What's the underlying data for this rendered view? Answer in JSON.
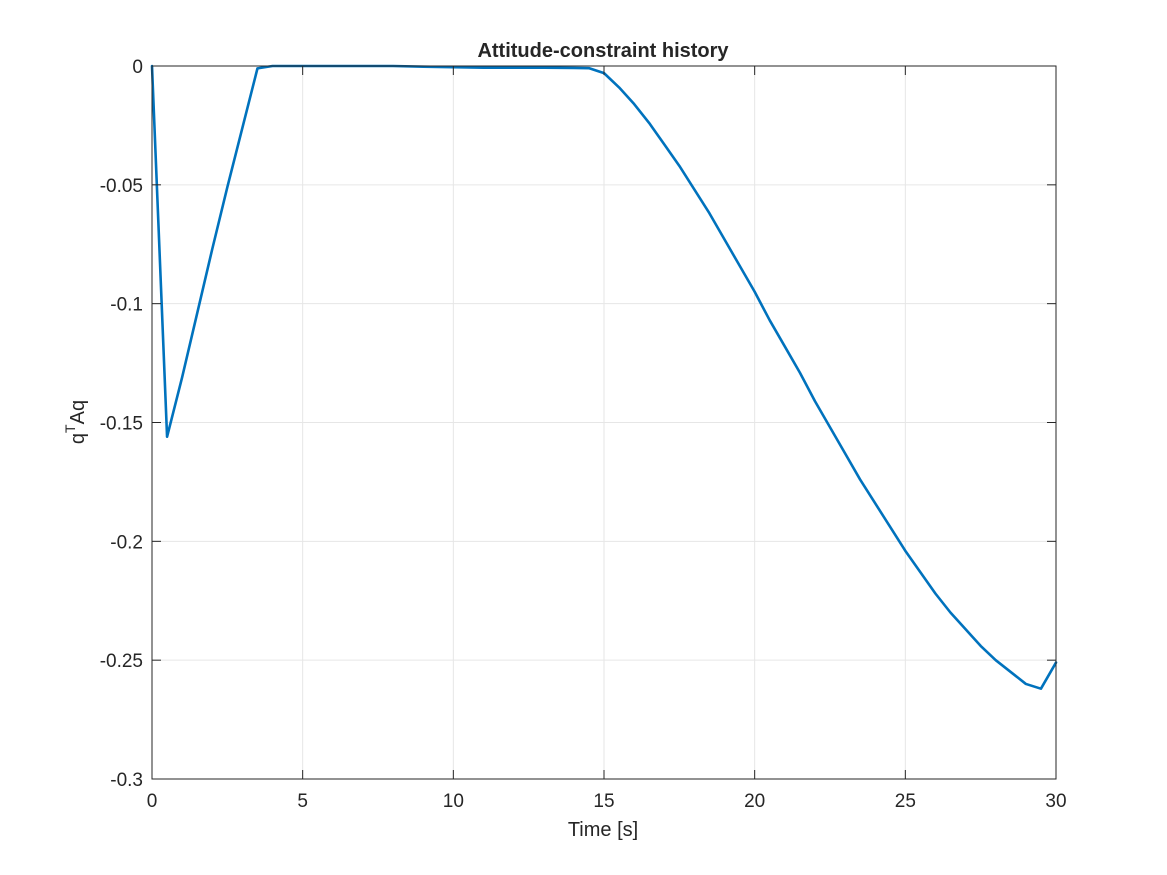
{
  "chart_data": {
    "type": "line",
    "title": "Attitude-constraint history",
    "xlabel": "Time [s]",
    "ylabel": {
      "base": "q",
      "superscript": "T",
      "rest": "Aq"
    },
    "xlim": [
      0,
      30
    ],
    "ylim": [
      -0.3,
      0
    ],
    "xticks": [
      0,
      5,
      10,
      15,
      20,
      25,
      30
    ],
    "xtick_labels": [
      "0",
      "5",
      "10",
      "15",
      "20",
      "25",
      "30"
    ],
    "yticks": [
      0,
      -0.05,
      -0.1,
      -0.15,
      -0.2,
      -0.25,
      -0.3
    ],
    "ytick_labels": [
      "0",
      "-0.05",
      "-0.1",
      "-0.15",
      "-0.2",
      "-0.25",
      "-0.3"
    ],
    "grid": true,
    "colors": {
      "line": "#0072BD",
      "grid": "#e6e6e6",
      "axis": "#262626"
    },
    "series": [
      {
        "x": [
          0,
          0.5,
          1.0,
          1.5,
          2.0,
          2.5,
          3.0,
          3.5,
          4.0,
          5,
          6,
          7,
          8,
          9,
          10,
          11,
          12,
          13,
          14,
          14.5,
          15,
          15.5,
          16,
          16.5,
          17,
          17.5,
          18,
          18.5,
          19,
          19.5,
          20,
          20.5,
          21,
          21.5,
          22,
          22.5,
          23,
          23.5,
          24,
          24.5,
          25,
          25.5,
          26,
          26.5,
          27,
          27.5,
          28,
          28.5,
          29,
          29.5,
          30
        ],
        "y": [
          0,
          -0.156,
          -0.131,
          -0.104,
          -0.077,
          -0.051,
          -0.026,
          -0.001,
          0,
          0,
          0,
          0,
          0,
          -0.0003,
          -0.0005,
          -0.0007,
          -0.0007,
          -0.0007,
          -0.0008,
          -0.0009,
          -0.003,
          -0.009,
          -0.016,
          -0.024,
          -0.033,
          -0.042,
          -0.052,
          -0.062,
          -0.073,
          -0.084,
          -0.095,
          -0.107,
          -0.118,
          -0.129,
          -0.141,
          -0.152,
          -0.163,
          -0.174,
          -0.184,
          -0.194,
          -0.204,
          -0.213,
          -0.222,
          -0.23,
          -0.237,
          -0.244,
          -0.25,
          -0.255,
          -0.26,
          -0.262,
          -0.251
        ]
      }
    ]
  }
}
